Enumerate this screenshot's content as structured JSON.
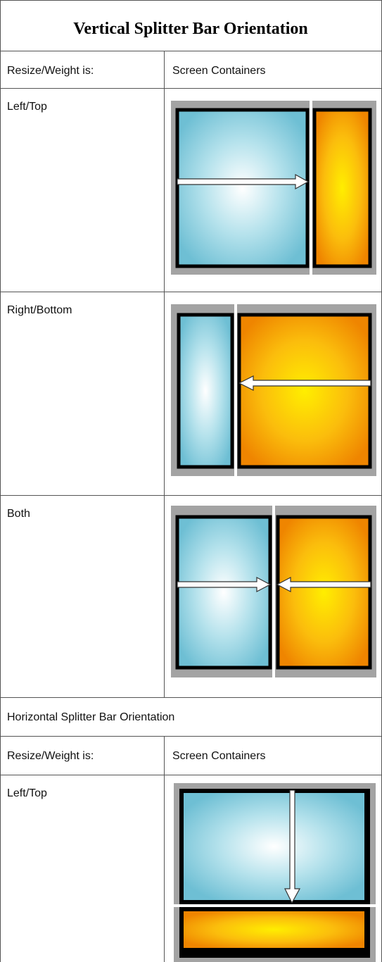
{
  "title": "Vertical Splitter Bar Orientation",
  "vertical": {
    "header": [
      "Resize/Weight is:",
      "Screen Containers"
    ],
    "rows": [
      "Left/Top",
      "Right/Bottom",
      "Both"
    ]
  },
  "horizontal": {
    "title": "Horizontal Splitter Bar Orientation",
    "header": [
      "Resize/Weight is:",
      "Screen Containers"
    ],
    "rows": [
      "Left/Top"
    ]
  }
}
